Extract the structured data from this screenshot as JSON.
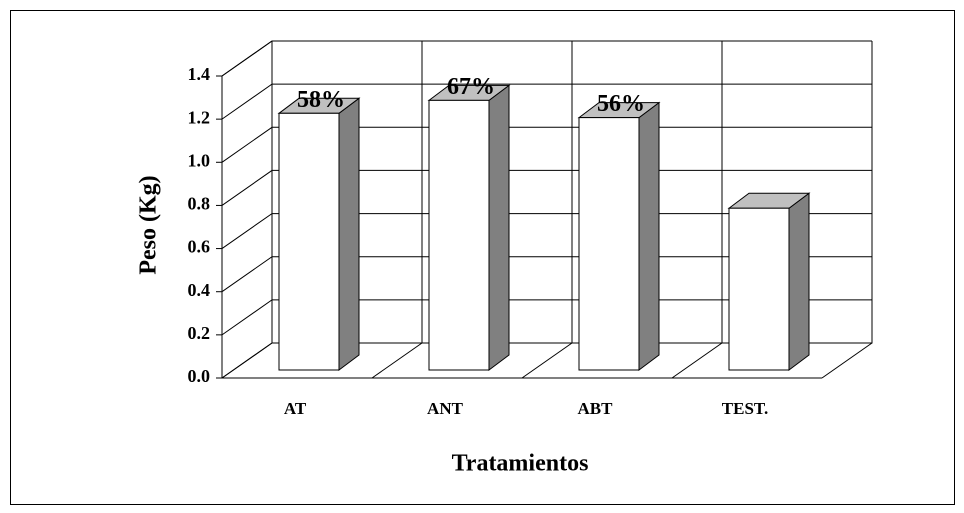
{
  "chart_data": {
    "type": "bar3d",
    "y_label": "Peso (Kg)",
    "x_label": "Tratamientos",
    "categories": [
      "AT",
      "ANT",
      "ABT",
      "TEST."
    ],
    "values": [
      1.19,
      1.25,
      1.17,
      0.75
    ],
    "bar_annotations": [
      "58%",
      "67%",
      "56%",
      null
    ],
    "color": "#ffffff",
    "side_color": "#808080",
    "top_color": "#c0c0c0",
    "ylim": [
      0,
      1.4
    ],
    "yticks": [
      {
        "value": 0,
        "label": "0.0"
      },
      {
        "value": 0.2,
        "label": "0.2"
      },
      {
        "value": 0.4,
        "label": "0.4"
      },
      {
        "value": 0.6,
        "label": "0.6"
      },
      {
        "value": 0.8,
        "label": "0.8"
      },
      {
        "value": 1.0,
        "label": "1.0"
      },
      {
        "value": 1.2,
        "label": "1.2"
      },
      {
        "value": 1.4,
        "label": "1.4"
      }
    ],
    "grid": true
  }
}
